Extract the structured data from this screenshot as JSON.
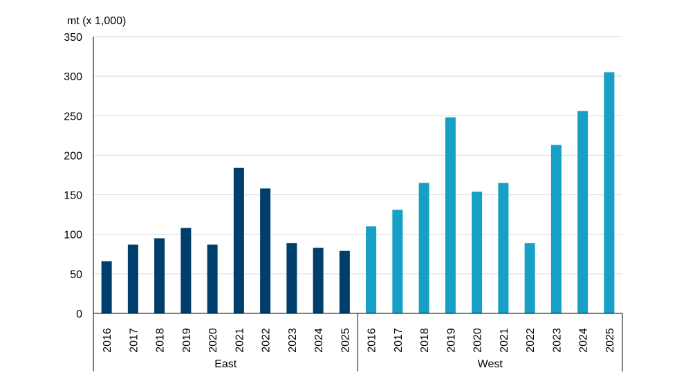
{
  "chart_data": {
    "type": "bar",
    "ylabel": "mt (x 1,000)",
    "ylim": [
      0,
      350
    ],
    "yticks": [
      0,
      50,
      100,
      150,
      200,
      250,
      300,
      350
    ],
    "grid": true,
    "groups": [
      {
        "name": "East",
        "color": "#003f6b",
        "categories": [
          "2016",
          "2017",
          "2018",
          "2019",
          "2020",
          "2021",
          "2022",
          "2023",
          "2024",
          "2025"
        ],
        "values": [
          66,
          87,
          95,
          108,
          87,
          184,
          158,
          89,
          83,
          79
        ]
      },
      {
        "name": "West",
        "color": "#16a0c6",
        "categories": [
          "2016",
          "2017",
          "2018",
          "2019",
          "2020",
          "2021",
          "2022",
          "2023",
          "2024",
          "2025"
        ],
        "values": [
          110,
          131,
          165,
          248,
          154,
          165,
          89,
          213,
          256,
          305
        ]
      }
    ]
  }
}
